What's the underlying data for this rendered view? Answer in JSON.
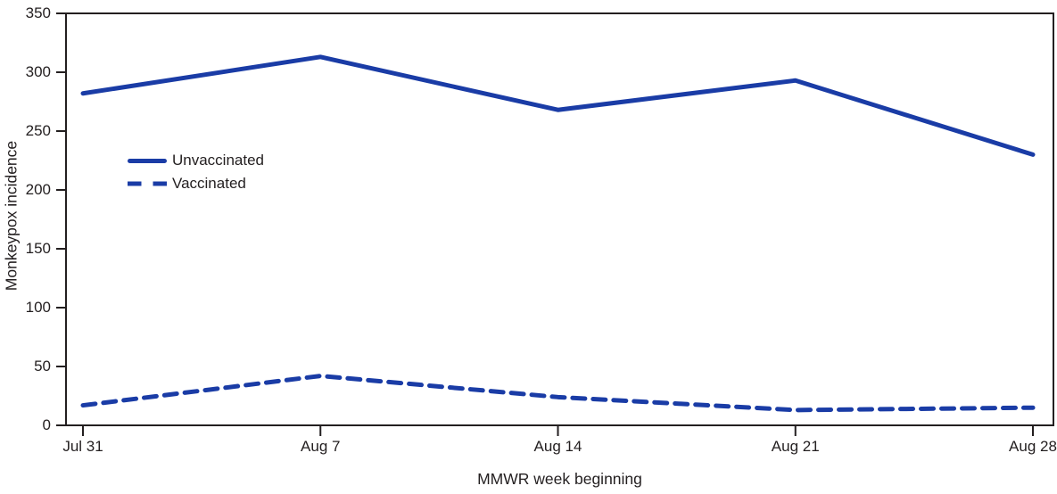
{
  "chart_data": {
    "type": "line",
    "categories": [
      "Jul 31",
      "Aug 7",
      "Aug 14",
      "Aug 21",
      "Aug 28"
    ],
    "series": [
      {
        "name": "Unvaccinated",
        "style": "solid",
        "values": [
          282,
          313,
          268,
          293,
          230
        ]
      },
      {
        "name": "Vaccinated",
        "style": "dashed",
        "values": [
          17,
          42,
          24,
          13,
          15
        ]
      }
    ],
    "xlabel": "MMWR week beginning",
    "ylabel": "Monkeypox incidence",
    "ylim": [
      0,
      350
    ],
    "yticks": [
      350,
      300,
      250,
      200,
      150,
      100,
      50,
      0
    ],
    "grid": false,
    "legend_position": "upper-left-inside",
    "colors": {
      "line": "#1a3ca6",
      "axis": "#231f20",
      "text": "#231f20",
      "background": "#ffffff"
    }
  }
}
